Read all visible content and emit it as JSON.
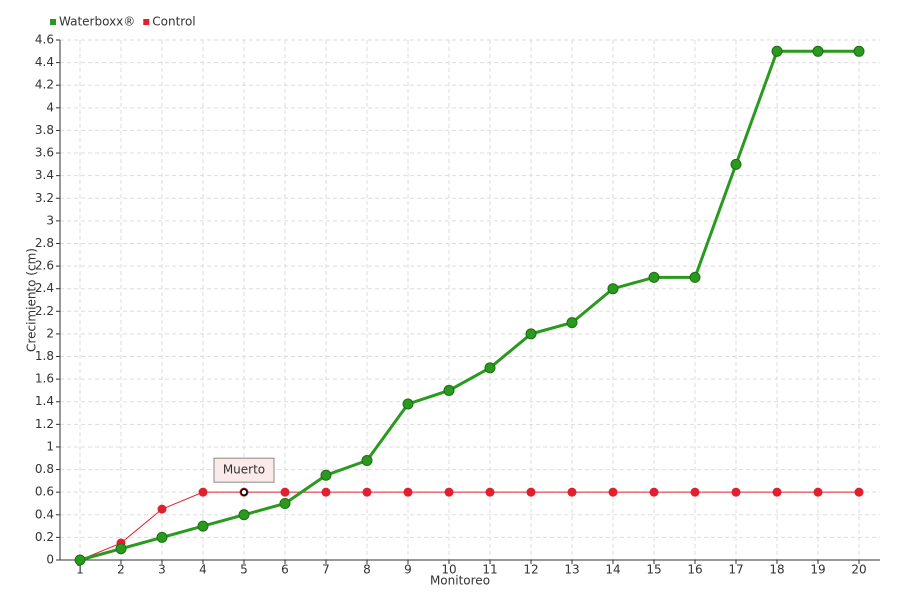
{
  "chart_data": {
    "type": "line",
    "x_label": "Monitoreo",
    "y_label": "Crecimiento (cm)",
    "categories": [
      "1",
      "2",
      "3",
      "4",
      "5",
      "6",
      "7",
      "8",
      "9",
      "10",
      "11",
      "12",
      "13",
      "14",
      "15",
      "16",
      "17",
      "18",
      "19",
      "20"
    ],
    "series": [
      {
        "name": "Waterboxx®",
        "color": "#2a9a1f",
        "values": [
          0,
          0.1,
          0.2,
          0.3,
          0.4,
          0.5,
          0.75,
          0.88,
          1.38,
          1.5,
          1.7,
          2.0,
          2.1,
          2.4,
          2.5,
          2.5,
          3.5,
          4.5,
          4.5,
          4.5
        ]
      },
      {
        "name": "Control",
        "color": "#e0202f",
        "values": [
          0,
          0.15,
          0.45,
          0.6,
          0.6,
          0.6,
          0.6,
          0.6,
          0.6,
          0.6,
          0.6,
          0.6,
          0.6,
          0.6,
          0.6,
          0.6,
          0.6,
          0.6,
          0.6,
          0.6
        ]
      }
    ],
    "annotation": {
      "text": "Muerto",
      "series": "Control",
      "category": "5"
    },
    "ylim": [
      0,
      4.6
    ],
    "yticks": [
      0,
      0.2,
      0.4,
      0.6,
      0.8,
      1,
      1.2,
      1.4,
      1.6,
      1.8,
      2,
      2.2,
      2.4,
      2.6,
      2.8,
      3,
      3.2,
      3.4,
      3.6,
      3.8,
      4,
      4.2,
      4.4,
      4.6
    ],
    "grid": true,
    "legend": "top-left"
  }
}
